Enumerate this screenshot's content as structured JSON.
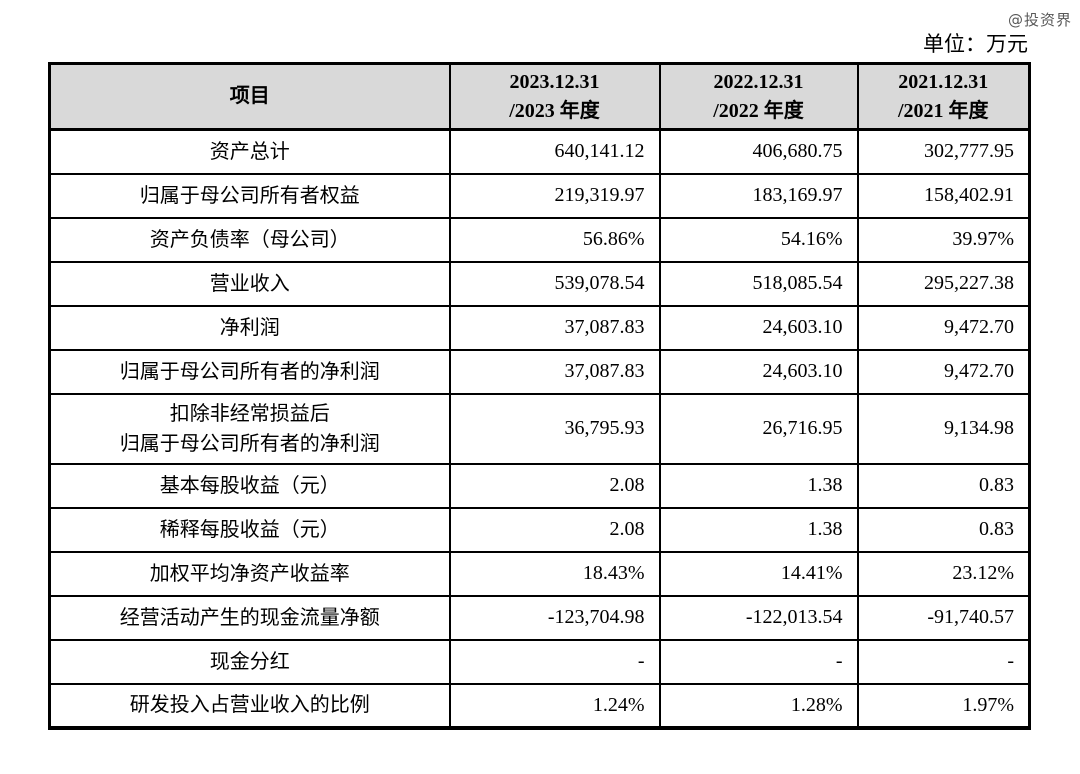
{
  "watermark": "@投资界",
  "unit_label": "单位：万元",
  "table": {
    "header": {
      "item_label": "项目",
      "period_columns": [
        "2023.12.31\n/2023 年度",
        "2022.12.31\n/2022 年度",
        "2021.12.31\n/2021 年度"
      ]
    },
    "rows": [
      {
        "label": "资产总计",
        "values": [
          "640,141.12",
          "406,680.75",
          "302,777.95"
        ]
      },
      {
        "label": "归属于母公司所有者权益",
        "values": [
          "219,319.97",
          "183,169.97",
          "158,402.91"
        ]
      },
      {
        "label": "资产负债率（母公司）",
        "values": [
          "56.86%",
          "54.16%",
          "39.97%"
        ]
      },
      {
        "label": "营业收入",
        "values": [
          "539,078.54",
          "518,085.54",
          "295,227.38"
        ]
      },
      {
        "label": "净利润",
        "values": [
          "37,087.83",
          "24,603.10",
          "9,472.70"
        ]
      },
      {
        "label": "归属于母公司所有者的净利润",
        "values": [
          "37,087.83",
          "24,603.10",
          "9,472.70"
        ]
      },
      {
        "label": "扣除非经常损益后\n归属于母公司所有者的净利润",
        "values": [
          "36,795.93",
          "26,716.95",
          "9,134.98"
        ]
      },
      {
        "label": "基本每股收益（元）",
        "values": [
          "2.08",
          "1.38",
          "0.83"
        ]
      },
      {
        "label": "稀释每股收益（元）",
        "values": [
          "2.08",
          "1.38",
          "0.83"
        ]
      },
      {
        "label": "加权平均净资产收益率",
        "values": [
          "18.43%",
          "14.41%",
          "23.12%"
        ]
      },
      {
        "label": "经营活动产生的现金流量净额",
        "values": [
          "-123,704.98",
          "-122,013.54",
          "-91,740.57"
        ]
      },
      {
        "label": "现金分红",
        "values": [
          "-",
          "-",
          "-"
        ]
      },
      {
        "label": "研发投入占营业收入的比例",
        "values": [
          "1.24%",
          "1.28%",
          "1.97%"
        ]
      }
    ]
  }
}
